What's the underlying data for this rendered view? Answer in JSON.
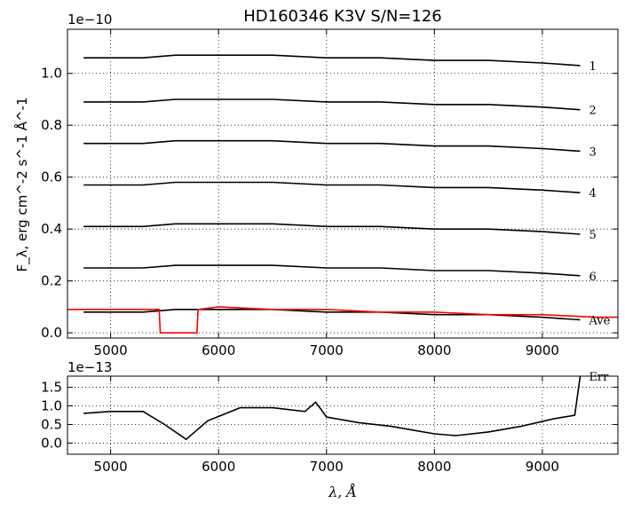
{
  "chart_data": [
    {
      "type": "line",
      "title": "HD160346  K3V  S/N=126",
      "ylabel": "F_λ, erg cm^-2 s^-1 Å^-1",
      "xlabel": "",
      "xlim": [
        4600,
        9700
      ],
      "ylim": [
        -0.02,
        1.17
      ],
      "y_offset_multiplier": "1e−10",
      "xticks": [
        5000,
        6000,
        7000,
        8000,
        9000
      ],
      "xtick_labels": [
        "5000",
        "6000",
        "7000",
        "8000",
        "9000"
      ],
      "yticks": [
        0.0,
        0.2,
        0.4,
        0.6,
        0.8,
        1.0
      ],
      "ytick_labels": [
        "0.0",
        "0.2",
        "0.4",
        "0.6",
        "0.8",
        "1.0"
      ],
      "grid": true,
      "series": [
        {
          "name": "1",
          "color": "#000000",
          "x": [
            4750,
            5000,
            5300,
            5600,
            6000,
            6500,
            7000,
            7500,
            8000,
            8500,
            9000,
            9350
          ],
          "y": [
            1.06,
            1.06,
            1.06,
            1.07,
            1.07,
            1.07,
            1.06,
            1.06,
            1.05,
            1.05,
            1.04,
            1.03
          ]
        },
        {
          "name": "2",
          "color": "#000000",
          "x": [
            4750,
            5000,
            5300,
            5600,
            6000,
            6500,
            7000,
            7500,
            8000,
            8500,
            9000,
            9350
          ],
          "y": [
            0.89,
            0.89,
            0.89,
            0.9,
            0.9,
            0.9,
            0.89,
            0.89,
            0.88,
            0.88,
            0.87,
            0.86
          ]
        },
        {
          "name": "3",
          "color": "#000000",
          "x": [
            4750,
            5000,
            5300,
            5600,
            6000,
            6500,
            7000,
            7500,
            8000,
            8500,
            9000,
            9350
          ],
          "y": [
            0.73,
            0.73,
            0.73,
            0.74,
            0.74,
            0.74,
            0.73,
            0.73,
            0.72,
            0.72,
            0.71,
            0.7
          ]
        },
        {
          "name": "4",
          "color": "#000000",
          "x": [
            4750,
            5000,
            5300,
            5600,
            6000,
            6500,
            7000,
            7500,
            8000,
            8500,
            9000,
            9350
          ],
          "y": [
            0.57,
            0.57,
            0.57,
            0.58,
            0.58,
            0.58,
            0.57,
            0.57,
            0.56,
            0.56,
            0.55,
            0.54
          ]
        },
        {
          "name": "5",
          "color": "#000000",
          "x": [
            4750,
            5000,
            5300,
            5600,
            6000,
            6500,
            7000,
            7500,
            8000,
            8500,
            9000,
            9350
          ],
          "y": [
            0.41,
            0.41,
            0.41,
            0.42,
            0.42,
            0.42,
            0.41,
            0.41,
            0.4,
            0.4,
            0.39,
            0.38
          ]
        },
        {
          "name": "6",
          "color": "#000000",
          "x": [
            4750,
            5000,
            5300,
            5600,
            6000,
            6500,
            7000,
            7500,
            8000,
            8500,
            9000,
            9350
          ],
          "y": [
            0.25,
            0.25,
            0.25,
            0.26,
            0.26,
            0.26,
            0.25,
            0.25,
            0.24,
            0.24,
            0.23,
            0.22
          ]
        },
        {
          "name": "Ave",
          "color": "#000000",
          "x": [
            4750,
            5000,
            5300,
            5600,
            6000,
            6500,
            7000,
            7500,
            8000,
            8500,
            9000,
            9350
          ],
          "y": [
            0.08,
            0.08,
            0.08,
            0.09,
            0.09,
            0.09,
            0.08,
            0.08,
            0.07,
            0.07,
            0.06,
            0.05
          ]
        },
        {
          "name": "",
          "color": "#ff0000",
          "x": [
            4600,
            5000,
            5450,
            5460,
            5800,
            5810,
            6000,
            6500,
            7000,
            7500,
            8000,
            8500,
            9000,
            9500,
            9700
          ],
          "y": [
            0.09,
            0.09,
            0.09,
            0.0,
            0.0,
            0.09,
            0.1,
            0.09,
            0.09,
            0.08,
            0.08,
            0.07,
            0.07,
            0.06,
            0.06
          ]
        }
      ],
      "annotations": [
        "1",
        "2",
        "3",
        "4",
        "5",
        "6",
        "Ave"
      ]
    },
    {
      "type": "line",
      "xlabel": "λ, Å",
      "ylabel": "",
      "xlim": [
        4600,
        9700
      ],
      "ylim": [
        -0.3,
        1.8
      ],
      "y_offset_multiplier": "1e−13",
      "xticks": [
        5000,
        6000,
        7000,
        8000,
        9000
      ],
      "xtick_labels": [
        "5000",
        "6000",
        "7000",
        "8000",
        "9000"
      ],
      "yticks": [
        0.0,
        0.5,
        1.0,
        1.5
      ],
      "ytick_labels": [
        "0.0",
        "0.5",
        "1.0",
        "1.5"
      ],
      "grid": true,
      "series": [
        {
          "name": "Err",
          "color": "#000000",
          "x": [
            4750,
            5000,
            5300,
            5500,
            5700,
            5900,
            6200,
            6500,
            6800,
            6900,
            7000,
            7300,
            7600,
            7800,
            8000,
            8200,
            8500,
            8800,
            9100,
            9300,
            9350
          ],
          "y": [
            0.8,
            0.85,
            0.85,
            0.5,
            0.1,
            0.6,
            0.95,
            0.95,
            0.85,
            1.1,
            0.7,
            0.55,
            0.45,
            0.35,
            0.25,
            0.2,
            0.3,
            0.45,
            0.65,
            0.75,
            1.8
          ]
        }
      ],
      "annotations": [
        "Err"
      ]
    }
  ]
}
